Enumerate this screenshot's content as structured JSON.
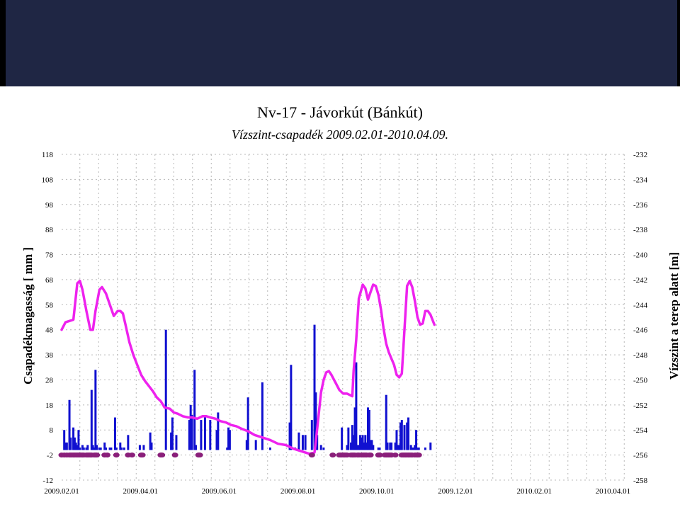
{
  "chart_data": {
    "type": "bar+line+scatter",
    "title": "Nv-17 - Jávorkút (Bánkút)",
    "subtitle": "Vízszint-csapadék 2009.02.01-2010.04.09.",
    "ylabel_left": "Csapadékmagasság [ mm ]",
    "ylabel_right": "Vízszint a terep alatt [m]",
    "x_range": [
      "2009.02.01",
      "2010.04.09"
    ],
    "x_ticks": [
      "2009.02.01",
      "2009.04.01",
      "2009.06.01",
      "2009.08.01",
      "2009.10.01",
      "2009.12.01",
      "2010.02.01",
      "2010.04.01"
    ],
    "y_left": {
      "ticks": [
        "118",
        "108",
        "98",
        "88",
        "78",
        "68",
        "58",
        "48",
        "38",
        "28",
        "18",
        "8",
        "-2",
        "-12"
      ],
      "range": [
        -12,
        118
      ]
    },
    "y_right": {
      "ticks": [
        "-232",
        "-234",
        "-236",
        "-238",
        "-240",
        "-242",
        "-244",
        "-246",
        "-248",
        "-250",
        "-252",
        "-254",
        "-256",
        "-258"
      ],
      "range": [
        -258,
        -232
      ]
    },
    "grid": true,
    "colors": {
      "precip": "#1010d0",
      "water": "#ee22ee",
      "markers": "#8a1f7a",
      "grid": "#b8b8b8"
    },
    "precipitation_mm": [
      {
        "day": 2,
        "value": 8
      },
      {
        "day": 3,
        "value": 3
      },
      {
        "day": 4,
        "value": 3
      },
      {
        "day": 6,
        "value": 20
      },
      {
        "day": 7,
        "value": 5
      },
      {
        "day": 9,
        "value": 9
      },
      {
        "day": 10,
        "value": 5
      },
      {
        "day": 11,
        "value": 3
      },
      {
        "day": 12,
        "value": 2
      },
      {
        "day": 13,
        "value": 8
      },
      {
        "day": 14,
        "value": 1
      },
      {
        "day": 16,
        "value": 2
      },
      {
        "day": 17,
        "value": 1
      },
      {
        "day": 19,
        "value": 1
      },
      {
        "day": 20,
        "value": 2
      },
      {
        "day": 23,
        "value": 24
      },
      {
        "day": 24,
        "value": 2
      },
      {
        "day": 25,
        "value": 1
      },
      {
        "day": 26,
        "value": 32
      },
      {
        "day": 27,
        "value": 2
      },
      {
        "day": 29,
        "value": 1
      },
      {
        "day": 30,
        "value": 1
      },
      {
        "day": 33,
        "value": 3
      },
      {
        "day": 34,
        "value": 1
      },
      {
        "day": 37,
        "value": 1
      },
      {
        "day": 38,
        "value": 1
      },
      {
        "day": 41,
        "value": 13
      },
      {
        "day": 42,
        "value": 1
      },
      {
        "day": 45,
        "value": 3
      },
      {
        "day": 46,
        "value": 1
      },
      {
        "day": 48,
        "value": 1
      },
      {
        "day": 51,
        "value": 6
      },
      {
        "day": 60,
        "value": 2
      },
      {
        "day": 63,
        "value": 2
      },
      {
        "day": 68,
        "value": 7
      },
      {
        "day": 69,
        "value": 3
      },
      {
        "day": 80,
        "value": 48
      },
      {
        "day": 84,
        "value": 7
      },
      {
        "day": 85,
        "value": 13
      },
      {
        "day": 88,
        "value": 6
      },
      {
        "day": 98,
        "value": 12
      },
      {
        "day": 99,
        "value": 18
      },
      {
        "day": 100,
        "value": 14
      },
      {
        "day": 102,
        "value": 32
      },
      {
        "day": 103,
        "value": 2
      },
      {
        "day": 107,
        "value": 12
      },
      {
        "day": 110,
        "value": 13
      },
      {
        "day": 114,
        "value": 12
      },
      {
        "day": 119,
        "value": 8
      },
      {
        "day": 120,
        "value": 15
      },
      {
        "day": 127,
        "value": 1
      },
      {
        "day": 128,
        "value": 9
      },
      {
        "day": 129,
        "value": 8
      },
      {
        "day": 142,
        "value": 4
      },
      {
        "day": 143,
        "value": 21
      },
      {
        "day": 149,
        "value": 4
      },
      {
        "day": 154,
        "value": 27
      },
      {
        "day": 160,
        "value": 1
      },
      {
        "day": 175,
        "value": 11
      },
      {
        "day": 176,
        "value": 34
      },
      {
        "day": 179,
        "value": 1
      },
      {
        "day": 182,
        "value": 7
      },
      {
        "day": 185,
        "value": 6
      },
      {
        "day": 187,
        "value": 6
      },
      {
        "day": 192,
        "value": 12
      },
      {
        "day": 194,
        "value": 50
      },
      {
        "day": 195,
        "value": 23
      },
      {
        "day": 196,
        "value": 6
      },
      {
        "day": 199,
        "value": 2
      },
      {
        "day": 201,
        "value": 1
      },
      {
        "day": 215,
        "value": 9
      },
      {
        "day": 219,
        "value": 2
      },
      {
        "day": 220,
        "value": 9
      },
      {
        "day": 222,
        "value": 3
      },
      {
        "day": 223,
        "value": 10
      },
      {
        "day": 224,
        "value": 6
      },
      {
        "day": 225,
        "value": 17
      },
      {
        "day": 226,
        "value": 35
      },
      {
        "day": 227,
        "value": 2
      },
      {
        "day": 228,
        "value": 2
      },
      {
        "day": 229,
        "value": 6
      },
      {
        "day": 230,
        "value": 5
      },
      {
        "day": 231,
        "value": 6
      },
      {
        "day": 232,
        "value": 3
      },
      {
        "day": 233,
        "value": 6
      },
      {
        "day": 234,
        "value": 3
      },
      {
        "day": 235,
        "value": 17
      },
      {
        "day": 236,
        "value": 16
      },
      {
        "day": 237,
        "value": 4
      },
      {
        "day": 238,
        "value": 4
      },
      {
        "day": 239,
        "value": 2
      },
      {
        "day": 243,
        "value": 1
      },
      {
        "day": 244,
        "value": 1
      },
      {
        "day": 249,
        "value": 22
      },
      {
        "day": 250,
        "value": 3
      },
      {
        "day": 252,
        "value": 3
      },
      {
        "day": 253,
        "value": 3
      },
      {
        "day": 256,
        "value": 3
      },
      {
        "day": 257,
        "value": 8
      },
      {
        "day": 258,
        "value": 2
      },
      {
        "day": 259,
        "value": 2
      },
      {
        "day": 260,
        "value": 11
      },
      {
        "day": 261,
        "value": 12
      },
      {
        "day": 263,
        "value": 10
      },
      {
        "day": 265,
        "value": 11
      },
      {
        "day": 266,
        "value": 13
      },
      {
        "day": 268,
        "value": 2
      },
      {
        "day": 269,
        "value": 1
      },
      {
        "day": 270,
        "value": 1
      },
      {
        "day": 271,
        "value": 2
      },
      {
        "day": 272,
        "value": 8
      },
      {
        "day": 273,
        "value": 1
      },
      {
        "day": 274,
        "value": 1
      },
      {
        "day": 279,
        "value": 1
      },
      {
        "day": 283,
        "value": 3
      }
    ],
    "water_level_m": [
      [
        0,
        -246.0
      ],
      [
        3,
        -245.4
      ],
      [
        6,
        -245.3
      ],
      [
        9,
        -245.2
      ],
      [
        12,
        -242.3
      ],
      [
        14,
        -242.1
      ],
      [
        16,
        -242.8
      ],
      [
        19,
        -244.5
      ],
      [
        22,
        -246.0
      ],
      [
        24,
        -246.0
      ],
      [
        26,
        -244.5
      ],
      [
        29,
        -242.8
      ],
      [
        31,
        -242.6
      ],
      [
        34,
        -243.1
      ],
      [
        37,
        -244.0
      ],
      [
        40,
        -244.9
      ],
      [
        43,
        -244.5
      ],
      [
        45,
        -244.5
      ],
      [
        47,
        -244.7
      ],
      [
        49,
        -245.6
      ],
      [
        52,
        -247.0
      ],
      [
        55,
        -248.0
      ],
      [
        58,
        -248.8
      ],
      [
        61,
        -249.6
      ],
      [
        64,
        -250.1
      ],
      [
        67,
        -250.5
      ],
      [
        70,
        -250.9
      ],
      [
        73,
        -251.4
      ],
      [
        76,
        -251.7
      ],
      [
        79,
        -252.2
      ],
      [
        83,
        -252.3
      ],
      [
        86,
        -252.6
      ],
      [
        89,
        -252.7
      ],
      [
        93,
        -252.9
      ],
      [
        97,
        -253.0
      ],
      [
        100,
        -253.0
      ],
      [
        104,
        -253.1
      ],
      [
        108,
        -252.9
      ],
      [
        111,
        -252.9
      ],
      [
        114,
        -253.0
      ],
      [
        118,
        -253.1
      ],
      [
        122,
        -253.3
      ],
      [
        126,
        -253.4
      ],
      [
        130,
        -253.6
      ],
      [
        134,
        -253.7
      ],
      [
        138,
        -253.9
      ],
      [
        143,
        -254.1
      ],
      [
        148,
        -254.4
      ],
      [
        154,
        -254.6
      ],
      [
        160,
        -254.8
      ],
      [
        166,
        -255.1
      ],
      [
        172,
        -255.2
      ],
      [
        178,
        -255.5
      ],
      [
        184,
        -255.7
      ],
      [
        190,
        -255.9
      ],
      [
        194,
        -255.8
      ],
      [
        195,
        -254.9
      ],
      [
        197,
        -253.0
      ],
      [
        199,
        -251.0
      ],
      [
        201,
        -250.0
      ],
      [
        203,
        -249.4
      ],
      [
        205,
        -249.3
      ],
      [
        207,
        -249.6
      ],
      [
        210,
        -250.2
      ],
      [
        213,
        -250.8
      ],
      [
        216,
        -251.1
      ],
      [
        219,
        -251.1
      ],
      [
        221,
        -251.2
      ],
      [
        223,
        -251.3
      ],
      [
        224,
        -249.3
      ],
      [
        226,
        -246.8
      ],
      [
        228,
        -243.5
      ],
      [
        231,
        -242.4
      ],
      [
        233,
        -242.7
      ],
      [
        235,
        -243.6
      ],
      [
        237,
        -243.0
      ],
      [
        239,
        -242.4
      ],
      [
        241,
        -242.5
      ],
      [
        243,
        -243.2
      ],
      [
        245,
        -244.4
      ],
      [
        247,
        -245.9
      ],
      [
        249,
        -247.1
      ],
      [
        251,
        -247.8
      ],
      [
        253,
        -248.3
      ],
      [
        255,
        -248.8
      ],
      [
        257,
        -249.6
      ],
      [
        259,
        -249.8
      ],
      [
        261,
        -249.5
      ],
      [
        263,
        -246.0
      ],
      [
        265,
        -242.5
      ],
      [
        267,
        -242.1
      ],
      [
        269,
        -242.6
      ],
      [
        271,
        -243.7
      ],
      [
        273,
        -245.0
      ],
      [
        275,
        -245.6
      ],
      [
        277,
        -245.5
      ],
      [
        279,
        -244.5
      ],
      [
        281,
        -244.5
      ],
      [
        283,
        -244.8
      ],
      [
        286,
        -245.6
      ]
    ],
    "level_markers_days": [
      0,
      2,
      4,
      6,
      7,
      8,
      9,
      10,
      11,
      12,
      13,
      14,
      15,
      16,
      17,
      19,
      20,
      21,
      22,
      23,
      25,
      26,
      27,
      33,
      35,
      42,
      51,
      54,
      61,
      62,
      76,
      77,
      87,
      105,
      106,
      192,
      208,
      213,
      214,
      215,
      216,
      217,
      218,
      219,
      222,
      223,
      224,
      225,
      227,
      228,
      230,
      231,
      232,
      233,
      234,
      236,
      237,
      243,
      244,
      248,
      249,
      250,
      251,
      252,
      253,
      256,
      261,
      262,
      263,
      264,
      265,
      266,
      267,
      268,
      269,
      271,
      272,
      273,
      274
    ]
  }
}
